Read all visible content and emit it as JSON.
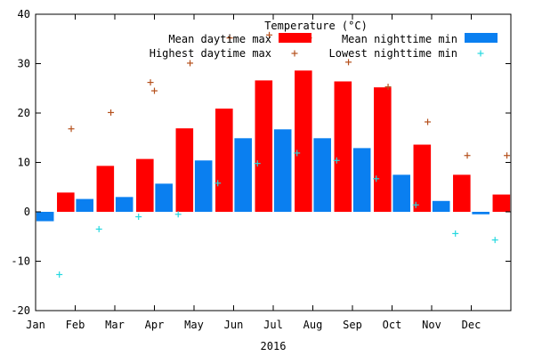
{
  "chart_data": {
    "type": "bar",
    "title": "Temperature (°C)",
    "xlabel": "2016",
    "ylabel": "",
    "ylim": [
      -20,
      40
    ],
    "yticks": [
      -20,
      -10,
      0,
      10,
      20,
      30,
      40
    ],
    "grid": false,
    "legend_position": "top-right",
    "categories": [
      "Jan",
      "Feb",
      "Mar",
      "Apr",
      "May",
      "Jun",
      "Jul",
      "Aug",
      "Sep",
      "Oct",
      "Nov",
      "Dec"
    ],
    "series": [
      {
        "name": "Mean daytime max",
        "kind": "bar",
        "color": "#ff0000",
        "values": [
          3.9,
          9.3,
          10.7,
          16.9,
          20.9,
          26.6,
          28.6,
          26.4,
          25.2,
          13.6,
          7.5,
          3.5
        ]
      },
      {
        "name": "Mean nighttime min",
        "kind": "bar",
        "color": "#0a7ff0",
        "values": [
          -1.9,
          2.6,
          3.0,
          5.7,
          10.4,
          14.9,
          16.7,
          14.9,
          12.9,
          7.5,
          2.2,
          -0.5
        ]
      },
      {
        "name": "Highest daytime max",
        "kind": "point",
        "marker": "+",
        "color": "#b5501c",
        "values": [
          16.8,
          20.1,
          26.2,
          30.1,
          35.2,
          35.8,
          35.2,
          30.3,
          25.3,
          18.2,
          11.4,
          11.4
        ]
      },
      {
        "name": "Lowest nighttime min",
        "kind": "point",
        "marker": "+",
        "color": "#24d8e0",
        "values": [
          -12.7,
          -3.5,
          -1.0,
          -0.5,
          5.8,
          9.8,
          11.9,
          10.4,
          6.7,
          1.4,
          -4.4,
          -5.7
        ]
      }
    ],
    "extra_points": [
      {
        "series": "Highest daytime max",
        "x": "Apr-early",
        "y": 24.5
      }
    ]
  }
}
